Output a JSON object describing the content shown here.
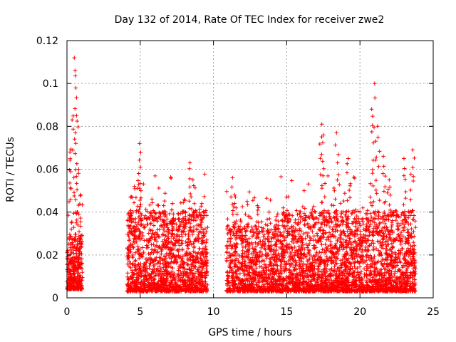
{
  "chart_data": {
    "type": "scatter",
    "title": "Day 132 of 2014, Rate Of TEC Index for receiver zwe2",
    "xlabel": "GPS time / hours",
    "ylabel": "ROTI / TECUs",
    "xlim": [
      0,
      25
    ],
    "ylim": [
      0,
      0.12
    ],
    "xticks": [
      0,
      5,
      10,
      15,
      20,
      25
    ],
    "yticks": [
      0,
      0.02,
      0.04,
      0.06,
      0.08,
      0.1,
      0.12
    ],
    "ytick_labels": [
      "0",
      "0.02",
      "0.04",
      "0.06",
      "0.08",
      "0.1",
      "0.12"
    ],
    "grid": true,
    "series": [
      {
        "name": "ROTI",
        "color": "#ff0000",
        "marker": "+",
        "segments": [
          {
            "x_start": 0.0,
            "x_end": 1.05,
            "base_low": 0.004,
            "base_high": 0.022,
            "count": 320,
            "peaks": [
              {
                "x": 0.2,
                "y": 0.068
              },
              {
                "x": 0.35,
                "y": 0.083
              },
              {
                "x": 0.5,
                "y": 0.112
              },
              {
                "x": 0.55,
                "y": 0.106
              },
              {
                "x": 0.65,
                "y": 0.085
              },
              {
                "x": 0.8,
                "y": 0.06
              },
              {
                "x": 0.95,
                "y": 0.048
              }
            ]
          },
          {
            "x_start": 4.1,
            "x_end": 9.6,
            "base_low": 0.003,
            "base_high": 0.03,
            "count": 1500,
            "peaks": [
              {
                "x": 4.6,
                "y": 0.052
              },
              {
                "x": 4.9,
                "y": 0.058
              },
              {
                "x": 4.95,
                "y": 0.072
              },
              {
                "x": 5.8,
                "y": 0.046
              },
              {
                "x": 6.6,
                "y": 0.043
              },
              {
                "x": 7.2,
                "y": 0.044
              },
              {
                "x": 8.0,
                "y": 0.046
              },
              {
                "x": 8.4,
                "y": 0.063
              },
              {
                "x": 8.6,
                "y": 0.055
              },
              {
                "x": 9.2,
                "y": 0.044
              }
            ]
          },
          {
            "x_start": 10.9,
            "x_end": 14.6,
            "base_low": 0.003,
            "base_high": 0.025,
            "count": 900,
            "peaks": [
              {
                "x": 11.3,
                "y": 0.056
              },
              {
                "x": 11.5,
                "y": 0.047
              },
              {
                "x": 12.3,
                "y": 0.045
              },
              {
                "x": 13.0,
                "y": 0.043
              },
              {
                "x": 13.8,
                "y": 0.04
              },
              {
                "x": 14.3,
                "y": 0.038
              }
            ]
          },
          {
            "x_start": 14.6,
            "x_end": 23.8,
            "base_low": 0.003,
            "base_high": 0.03,
            "count": 2600,
            "peaks": [
              {
                "x": 17.4,
                "y": 0.081
              },
              {
                "x": 17.5,
                "y": 0.076
              },
              {
                "x": 18.4,
                "y": 0.077
              },
              {
                "x": 19.2,
                "y": 0.065
              },
              {
                "x": 20.8,
                "y": 0.088
              },
              {
                "x": 21.0,
                "y": 0.1
              },
              {
                "x": 21.2,
                "y": 0.08
              },
              {
                "x": 21.6,
                "y": 0.066
              },
              {
                "x": 22.0,
                "y": 0.055
              },
              {
                "x": 23.0,
                "y": 0.065
              },
              {
                "x": 23.6,
                "y": 0.069
              }
            ]
          }
        ]
      }
    ]
  }
}
